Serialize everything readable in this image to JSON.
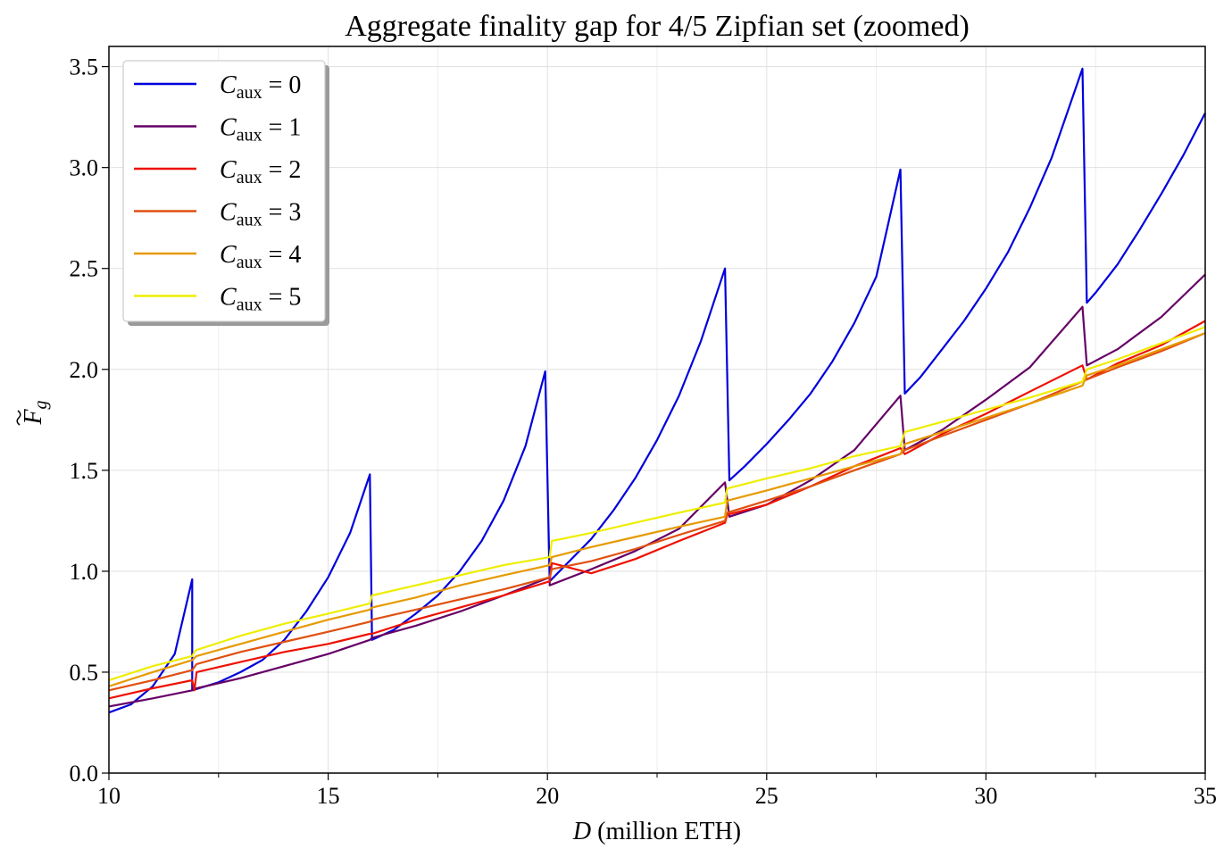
{
  "chart_data": {
    "type": "line",
    "title": "Aggregate finality gap for 4/5 Zipfian set (zoomed)",
    "xlabel_var": "D",
    "xlabel_rest": " (million ETH)",
    "ylabel_main": "F",
    "ylabel_sub": "g",
    "xlim": [
      10,
      35
    ],
    "ylim": [
      0,
      3.6
    ],
    "xticks": [
      10,
      15,
      20,
      25,
      30,
      35
    ],
    "xtick_labels": [
      "10",
      "15",
      "20",
      "25",
      "30",
      "35"
    ],
    "yticks": [
      0.0,
      0.5,
      1.0,
      1.5,
      2.0,
      2.5,
      3.0,
      3.5
    ],
    "ytick_labels": [
      "0.0",
      "0.5",
      "1.0",
      "1.5",
      "2.0",
      "2.5",
      "3.0",
      "3.5"
    ],
    "grid": true,
    "legend_position": "top-left",
    "series": [
      {
        "legend_main": "C",
        "legend_sub": "aux",
        "legend_rest": " = 0",
        "color": "#0000dd",
        "points": [
          [
            10,
            0.3
          ],
          [
            10.5,
            0.34
          ],
          [
            11,
            0.43
          ],
          [
            11.5,
            0.59
          ],
          [
            11.9,
            0.96
          ],
          [
            11.9,
            0.41
          ],
          [
            12.5,
            0.45
          ],
          [
            13,
            0.5
          ],
          [
            13.5,
            0.56
          ],
          [
            14,
            0.66
          ],
          [
            14.5,
            0.8
          ],
          [
            15,
            0.97
          ],
          [
            15.5,
            1.19
          ],
          [
            15.95,
            1.48
          ],
          [
            16,
            0.66
          ],
          [
            16.5,
            0.71
          ],
          [
            17,
            0.79
          ],
          [
            17.5,
            0.88
          ],
          [
            18,
            1.0
          ],
          [
            18.5,
            1.15
          ],
          [
            19,
            1.35
          ],
          [
            19.5,
            1.62
          ],
          [
            19.95,
            1.99
          ],
          [
            20.05,
            0.95
          ],
          [
            20.5,
            1.05
          ],
          [
            21,
            1.16
          ],
          [
            21.5,
            1.3
          ],
          [
            22,
            1.46
          ],
          [
            22.5,
            1.65
          ],
          [
            23,
            1.87
          ],
          [
            23.5,
            2.14
          ],
          [
            24.05,
            2.5
          ],
          [
            24.15,
            1.45
          ],
          [
            24.5,
            1.52
          ],
          [
            25,
            1.63
          ],
          [
            25.5,
            1.75
          ],
          [
            26,
            1.88
          ],
          [
            26.5,
            2.04
          ],
          [
            27,
            2.23
          ],
          [
            27.5,
            2.46
          ],
          [
            28.05,
            2.99
          ],
          [
            28.15,
            1.88
          ],
          [
            28.5,
            1.96
          ],
          [
            29,
            2.1
          ],
          [
            29.5,
            2.24
          ],
          [
            30,
            2.4
          ],
          [
            30.5,
            2.58
          ],
          [
            31,
            2.8
          ],
          [
            31.5,
            3.05
          ],
          [
            32.2,
            3.49
          ],
          [
            32.3,
            2.33
          ],
          [
            32.5,
            2.38
          ],
          [
            33,
            2.52
          ],
          [
            33.5,
            2.69
          ],
          [
            34,
            2.87
          ],
          [
            34.5,
            3.06
          ],
          [
            35,
            3.27
          ]
        ]
      },
      {
        "legend_main": "C",
        "legend_sub": "aux",
        "legend_rest": " = 1",
        "color": "#660066",
        "points": [
          [
            10,
            0.33
          ],
          [
            11,
            0.37
          ],
          [
            11.9,
            0.41
          ],
          [
            12,
            0.42
          ],
          [
            13,
            0.47
          ],
          [
            14,
            0.53
          ],
          [
            15,
            0.59
          ],
          [
            15.95,
            0.66
          ],
          [
            16,
            0.67
          ],
          [
            17,
            0.73
          ],
          [
            18,
            0.8
          ],
          [
            19,
            0.88
          ],
          [
            20.05,
            0.97
          ],
          [
            20.05,
            0.93
          ],
          [
            21,
            1.01
          ],
          [
            22,
            1.1
          ],
          [
            23,
            1.21
          ],
          [
            24.05,
            1.44
          ],
          [
            24.15,
            1.27
          ],
          [
            25,
            1.33
          ],
          [
            26,
            1.45
          ],
          [
            27,
            1.6
          ],
          [
            28.05,
            1.87
          ],
          [
            28.15,
            1.6
          ],
          [
            29,
            1.7
          ],
          [
            30,
            1.85
          ],
          [
            31,
            2.01
          ],
          [
            32.2,
            2.31
          ],
          [
            32.3,
            2.02
          ],
          [
            33,
            2.1
          ],
          [
            34,
            2.26
          ],
          [
            35,
            2.47
          ]
        ]
      },
      {
        "legend_main": "C",
        "legend_sub": "aux",
        "legend_rest": " = 2",
        "color": "#ee1100",
        "points": [
          [
            10,
            0.37
          ],
          [
            11,
            0.42
          ],
          [
            11.9,
            0.46
          ],
          [
            11.95,
            0.41
          ],
          [
            12,
            0.5
          ],
          [
            13,
            0.55
          ],
          [
            14,
            0.6
          ],
          [
            15,
            0.64
          ],
          [
            15.95,
            0.69
          ],
          [
            16,
            0.69
          ],
          [
            17,
            0.76
          ],
          [
            18,
            0.82
          ],
          [
            19,
            0.88
          ],
          [
            20.05,
            0.95
          ],
          [
            20.1,
            1.04
          ],
          [
            21,
            0.99
          ],
          [
            22,
            1.06
          ],
          [
            23,
            1.15
          ],
          [
            24.05,
            1.24
          ],
          [
            24.1,
            1.28
          ],
          [
            25,
            1.33
          ],
          [
            26,
            1.42
          ],
          [
            27,
            1.52
          ],
          [
            28.05,
            1.61
          ],
          [
            28.15,
            1.58
          ],
          [
            29,
            1.68
          ],
          [
            30,
            1.78
          ],
          [
            31,
            1.89
          ],
          [
            32.2,
            2.02
          ],
          [
            32.3,
            1.95
          ],
          [
            33,
            2.03
          ],
          [
            34,
            2.12
          ],
          [
            35,
            2.24
          ]
        ]
      },
      {
        "legend_main": "C",
        "legend_sub": "aux",
        "legend_rest": " = 3",
        "color": "#e05010",
        "points": [
          [
            10,
            0.41
          ],
          [
            11,
            0.46
          ],
          [
            11.9,
            0.51
          ],
          [
            12,
            0.54
          ],
          [
            13,
            0.6
          ],
          [
            14,
            0.65
          ],
          [
            15,
            0.7
          ],
          [
            15.95,
            0.75
          ],
          [
            16,
            0.76
          ],
          [
            17,
            0.81
          ],
          [
            18,
            0.86
          ],
          [
            19,
            0.91
          ],
          [
            20.05,
            0.97
          ],
          [
            20.1,
            1.01
          ],
          [
            21,
            1.05
          ],
          [
            22,
            1.11
          ],
          [
            23,
            1.18
          ],
          [
            24.05,
            1.25
          ],
          [
            24.1,
            1.29
          ],
          [
            25,
            1.35
          ],
          [
            26,
            1.42
          ],
          [
            27,
            1.5
          ],
          [
            28.05,
            1.58
          ],
          [
            28.15,
            1.6
          ],
          [
            29,
            1.67
          ],
          [
            30,
            1.75
          ],
          [
            31,
            1.83
          ],
          [
            32.2,
            1.94
          ],
          [
            32.3,
            1.95
          ],
          [
            33,
            2.01
          ],
          [
            34,
            2.09
          ],
          [
            35,
            2.18
          ]
        ]
      },
      {
        "legend_main": "C",
        "legend_sub": "aux",
        "legend_rest": " = 4",
        "color": "#e69a00",
        "points": [
          [
            10,
            0.43
          ],
          [
            11,
            0.5
          ],
          [
            11.9,
            0.56
          ],
          [
            12,
            0.58
          ],
          [
            13,
            0.64
          ],
          [
            14,
            0.7
          ],
          [
            15,
            0.76
          ],
          [
            15.95,
            0.81
          ],
          [
            16,
            0.82
          ],
          [
            17,
            0.87
          ],
          [
            18,
            0.93
          ],
          [
            19,
            0.98
          ],
          [
            20.05,
            1.03
          ],
          [
            20.1,
            1.07
          ],
          [
            21,
            1.12
          ],
          [
            22,
            1.17
          ],
          [
            23,
            1.22
          ],
          [
            24.05,
            1.27
          ],
          [
            24.1,
            1.35
          ],
          [
            25,
            1.4
          ],
          [
            26,
            1.46
          ],
          [
            27,
            1.52
          ],
          [
            28.05,
            1.58
          ],
          [
            28.15,
            1.63
          ],
          [
            29,
            1.69
          ],
          [
            30,
            1.76
          ],
          [
            31,
            1.83
          ],
          [
            32.2,
            1.92
          ],
          [
            32.3,
            1.97
          ],
          [
            33,
            2.02
          ],
          [
            34,
            2.1
          ],
          [
            35,
            2.18
          ]
        ]
      },
      {
        "legend_main": "C",
        "legend_sub": "aux",
        "legend_rest": " = 5",
        "color": "#eeee00",
        "points": [
          [
            10,
            0.46
          ],
          [
            11,
            0.53
          ],
          [
            11.9,
            0.58
          ],
          [
            11.95,
            0.6
          ],
          [
            12,
            0.61
          ],
          [
            13,
            0.68
          ],
          [
            14,
            0.74
          ],
          [
            15,
            0.79
          ],
          [
            15.95,
            0.84
          ],
          [
            16,
            0.88
          ],
          [
            17,
            0.93
          ],
          [
            18,
            0.98
          ],
          [
            19,
            1.03
          ],
          [
            20.05,
            1.07
          ],
          [
            20.1,
            1.15
          ],
          [
            21,
            1.19
          ],
          [
            22,
            1.24
          ],
          [
            23,
            1.29
          ],
          [
            24.05,
            1.34
          ],
          [
            24.1,
            1.41
          ],
          [
            25,
            1.46
          ],
          [
            26,
            1.51
          ],
          [
            27,
            1.57
          ],
          [
            28.05,
            1.62
          ],
          [
            28.15,
            1.69
          ],
          [
            29,
            1.74
          ],
          [
            30,
            1.8
          ],
          [
            31,
            1.86
          ],
          [
            32.2,
            1.94
          ],
          [
            32.3,
            2.0
          ],
          [
            33,
            2.05
          ],
          [
            34,
            2.13
          ],
          [
            35,
            2.21
          ]
        ]
      }
    ]
  }
}
